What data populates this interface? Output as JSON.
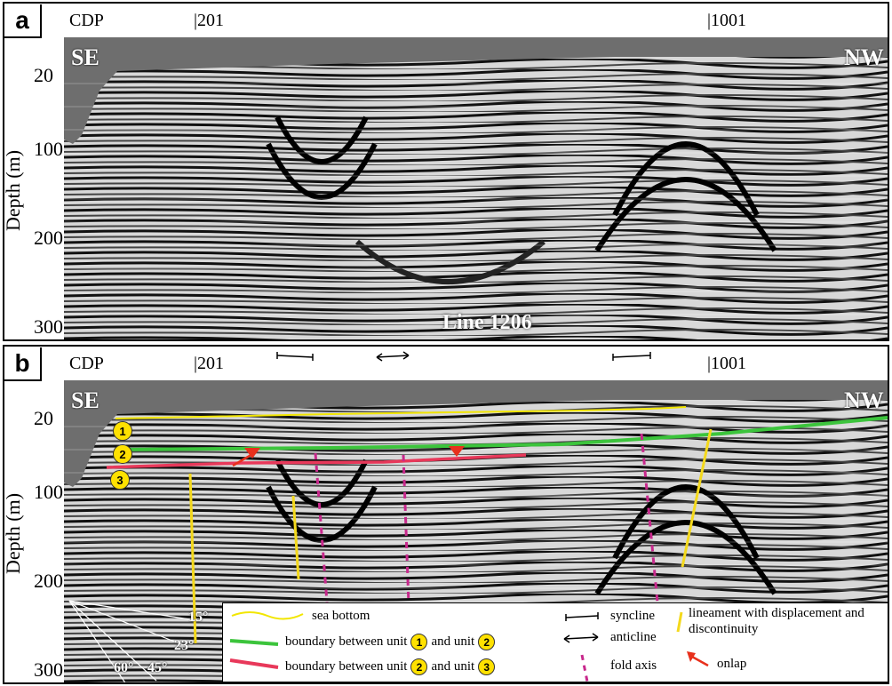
{
  "panels": [
    {
      "id": "a",
      "label": "a",
      "cdp_label": "CDP",
      "cdp_ticks": [
        "201",
        "1001"
      ],
      "corner_left": "SE",
      "corner_right": "NW",
      "y_axis_label": "Depth (m)",
      "y_ticks": [
        "20",
        "100",
        "200",
        "300"
      ],
      "line_name": "Line 1206"
    },
    {
      "id": "b",
      "label": "b",
      "cdp_label": "CDP",
      "cdp_ticks": [
        "201",
        "1001"
      ],
      "corner_left": "SE",
      "corner_right": "NW",
      "y_axis_label": "Depth (m)",
      "y_ticks": [
        "20",
        "100",
        "200",
        "300"
      ],
      "unit_labels": [
        "1",
        "2",
        "3"
      ],
      "angles": [
        "15°",
        "23°",
        "45°",
        "60°"
      ]
    }
  ],
  "legend": {
    "sea_bottom": "sea bottom",
    "boundary_12_a": "boundary between unit",
    "boundary_12_u1": "1",
    "boundary_12_and": "and unit",
    "boundary_12_u2": "2",
    "boundary_23_a": "boundary between unit",
    "boundary_23_u1": "2",
    "boundary_23_and": "and unit",
    "boundary_23_u2": "3",
    "syncline": "syncline",
    "anticline": "anticline",
    "fold_axis": "fold axis",
    "lineament": "lineament with displacement and discontinuity",
    "onlap": "onlap"
  },
  "colors": {
    "sea_bottom": "#f2e600",
    "boundary_12": "#3cc43c",
    "boundary_23": "#e8385a",
    "fold_axis": "#c8288c",
    "lineament": "#f4d91c",
    "onlap": "#e8301c",
    "unit_circle": "#ffe100",
    "water": "#6e6e6e"
  }
}
